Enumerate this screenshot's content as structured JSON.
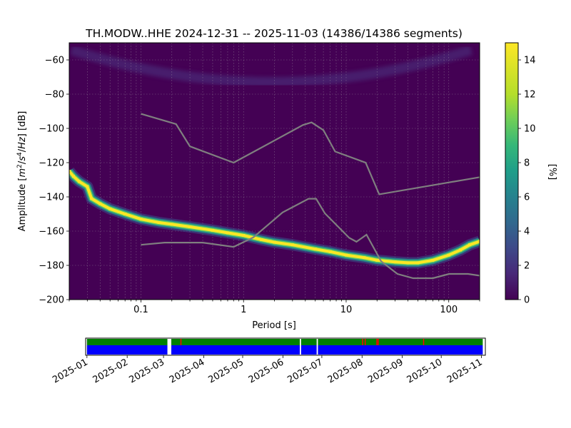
{
  "chart_data": [
    {
      "type": "heatmap",
      "title": "TH.MODW..HHE   2024-12-31 -- 2025-11-03  (14386/14386 segments)",
      "xlabel": "Period [s]",
      "ylabel": "Amplitude [m²/s⁴/Hz] [dB]",
      "x_scale": "log",
      "xlim": [
        0.02,
        200
      ],
      "ylim": [
        -200,
        -50
      ],
      "x_ticks": [
        0.1,
        1,
        10,
        100
      ],
      "x_tick_labels": [
        "0.1",
        "1",
        "10",
        "100"
      ],
      "y_ticks": [
        -200,
        -180,
        -160,
        -140,
        -120,
        -100,
        -80,
        -60
      ],
      "y_tick_labels": [
        "−200",
        "−180",
        "−160",
        "−140",
        "−120",
        "−100",
        "−80",
        "−60"
      ],
      "grid": true,
      "colorbar": {
        "label": "[%]",
        "range": [
          0,
          15
        ],
        "ticks": [
          0,
          2,
          4,
          6,
          8,
          10,
          12,
          14
        ],
        "tick_labels": [
          "0",
          "2",
          "4",
          "6",
          "8",
          "10",
          "12",
          "14"
        ],
        "colormap": "viridis"
      },
      "ppsd_mode": [
        {
          "x": 0.02,
          "y": -125
        },
        {
          "x": 0.022,
          "y": -128
        },
        {
          "x": 0.025,
          "y": -131
        },
        {
          "x": 0.03,
          "y": -134
        },
        {
          "x": 0.033,
          "y": -141
        },
        {
          "x": 0.04,
          "y": -144
        },
        {
          "x": 0.05,
          "y": -147
        },
        {
          "x": 0.07,
          "y": -150
        },
        {
          "x": 0.1,
          "y": -153
        },
        {
          "x": 0.15,
          "y": -155
        },
        {
          "x": 0.2,
          "y": -156
        },
        {
          "x": 0.3,
          "y": -157.5
        },
        {
          "x": 0.5,
          "y": -159.5
        },
        {
          "x": 0.7,
          "y": -161
        },
        {
          "x": 1,
          "y": -162.5
        },
        {
          "x": 1.5,
          "y": -165
        },
        {
          "x": 2,
          "y": -166.5
        },
        {
          "x": 3,
          "y": -168
        },
        {
          "x": 5,
          "y": -170.5
        },
        {
          "x": 7,
          "y": -172
        },
        {
          "x": 10,
          "y": -174
        },
        {
          "x": 15,
          "y": -175.5
        },
        {
          "x": 20,
          "y": -177
        },
        {
          "x": 30,
          "y": -178
        },
        {
          "x": 40,
          "y": -178.5
        },
        {
          "x": 50,
          "y": -178.5
        },
        {
          "x": 70,
          "y": -177
        },
        {
          "x": 100,
          "y": -174
        },
        {
          "x": 130,
          "y": -171
        },
        {
          "x": 160,
          "y": -168
        },
        {
          "x": 200,
          "y": -166
        }
      ],
      "series": [
        {
          "values": [
            {
              "x": 0.1,
              "y": -91.5
            },
            {
              "x": 0.22,
              "y": -97.5
            },
            {
              "x": 0.3,
              "y": -110.5
            },
            {
              "x": 0.8,
              "y": -120
            },
            {
              "x": 3.8,
              "y": -98
            },
            {
              "x": 4.6,
              "y": -96.5
            },
            {
              "x": 6,
              "y": -101
            },
            {
              "x": 7.8,
              "y": -113.5
            },
            {
              "x": 15.5,
              "y": -120
            },
            {
              "x": 21,
              "y": -138.5
            },
            {
              "x": 200,
              "y": -128.5
            }
          ]
        },
        {
          "values": [
            {
              "x": 0.1,
              "y": -168
            },
            {
              "x": 0.17,
              "y": -166.7
            },
            {
              "x": 0.4,
              "y": -166.7
            },
            {
              "x": 0.8,
              "y": -169.2
            },
            {
              "x": 1.24,
              "y": -163.7
            },
            {
              "x": 2.4,
              "y": -149.1
            },
            {
              "x": 4.3,
              "y": -141.1
            },
            {
              "x": 5.1,
              "y": -141.1
            },
            {
              "x": 6.2,
              "y": -149.6
            },
            {
              "x": 10.7,
              "y": -163.9
            },
            {
              "x": 12.6,
              "y": -166.2
            },
            {
              "x": 15.8,
              "y": -162.1
            },
            {
              "x": 21.9,
              "y": -177.6
            },
            {
              "x": 31.6,
              "y": -185.0
            },
            {
              "x": 45,
              "y": -187.5
            },
            {
              "x": 70,
              "y": -187.5
            },
            {
              "x": 101,
              "y": -185
            },
            {
              "x": 154,
              "y": -185
            },
            {
              "x": 200,
              "y": -186
            }
          ]
        }
      ],
      "colors": {
        "nlnm_nhnm": "#7f7f7f",
        "background": "#440154"
      }
    },
    {
      "type": "timeline",
      "x_type": "date",
      "xlim": [
        "2024-12-31",
        "2025-11-04"
      ],
      "x_tick_labels": [
        "2025-01",
        "2025-02",
        "2025-03",
        "2025-04",
        "2025-05",
        "2025-06",
        "2025-07",
        "2025-08",
        "2025-09",
        "2025-10",
        "2025-11"
      ],
      "data_range": [
        "2025-01-01",
        "2025-11-02"
      ],
      "gaps": [
        {
          "start": "2025-03-04",
          "end": "2025-03-07"
        },
        {
          "start": "2025-06-14",
          "end": "2025-06-15"
        },
        {
          "start": "2025-06-27",
          "end": "2025-06-28"
        }
      ],
      "red_marks": [
        "2025-03-14",
        "2025-08-01",
        "2025-08-03",
        "2025-08-12",
        "2025-08-13",
        "2025-09-17"
      ],
      "colors": {
        "used": "#008000",
        "available": "#0000ff",
        "marker": "#ff0000"
      }
    }
  ]
}
